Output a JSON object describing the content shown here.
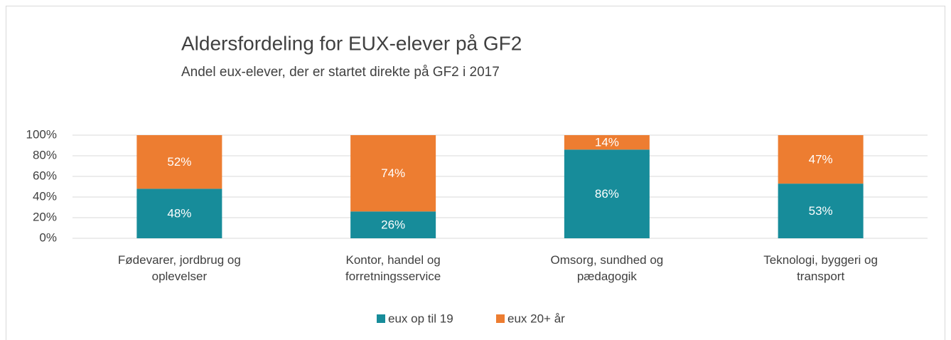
{
  "chart_data": {
    "type": "stacked_bar",
    "title": "Aldersfordeling for EUX-elever på GF2",
    "subtitle": "Andel eux-elever, der er startet direkte på GF2 i 2017",
    "categories": [
      "Fødevarer, jordbrug og oplevelser",
      "Kontor, handel og forretningsservice",
      "Omsorg, sundhed og pædagogik",
      "Teknologi, byggeri og transport"
    ],
    "series": [
      {
        "name": "eux op til 19",
        "color": "#178c9a",
        "values": [
          48,
          26,
          86,
          53
        ],
        "value_labels": [
          "48%",
          "26%",
          "86%",
          "53%"
        ]
      },
      {
        "name": "eux 20+ år",
        "color": "#ed7d31",
        "values": [
          52,
          74,
          14,
          47
        ],
        "value_labels": [
          "52%",
          "74%",
          "14%",
          "47%"
        ]
      }
    ],
    "ylim": [
      0,
      100
    ],
    "yticks": [
      {
        "value": 0,
        "label": "0%"
      },
      {
        "value": 20,
        "label": "20%"
      },
      {
        "value": 40,
        "label": "40%"
      },
      {
        "value": 60,
        "label": "60%"
      },
      {
        "value": 80,
        "label": "80%"
      },
      {
        "value": 100,
        "label": "100%"
      }
    ],
    "grid": true,
    "legend": "bottom"
  }
}
